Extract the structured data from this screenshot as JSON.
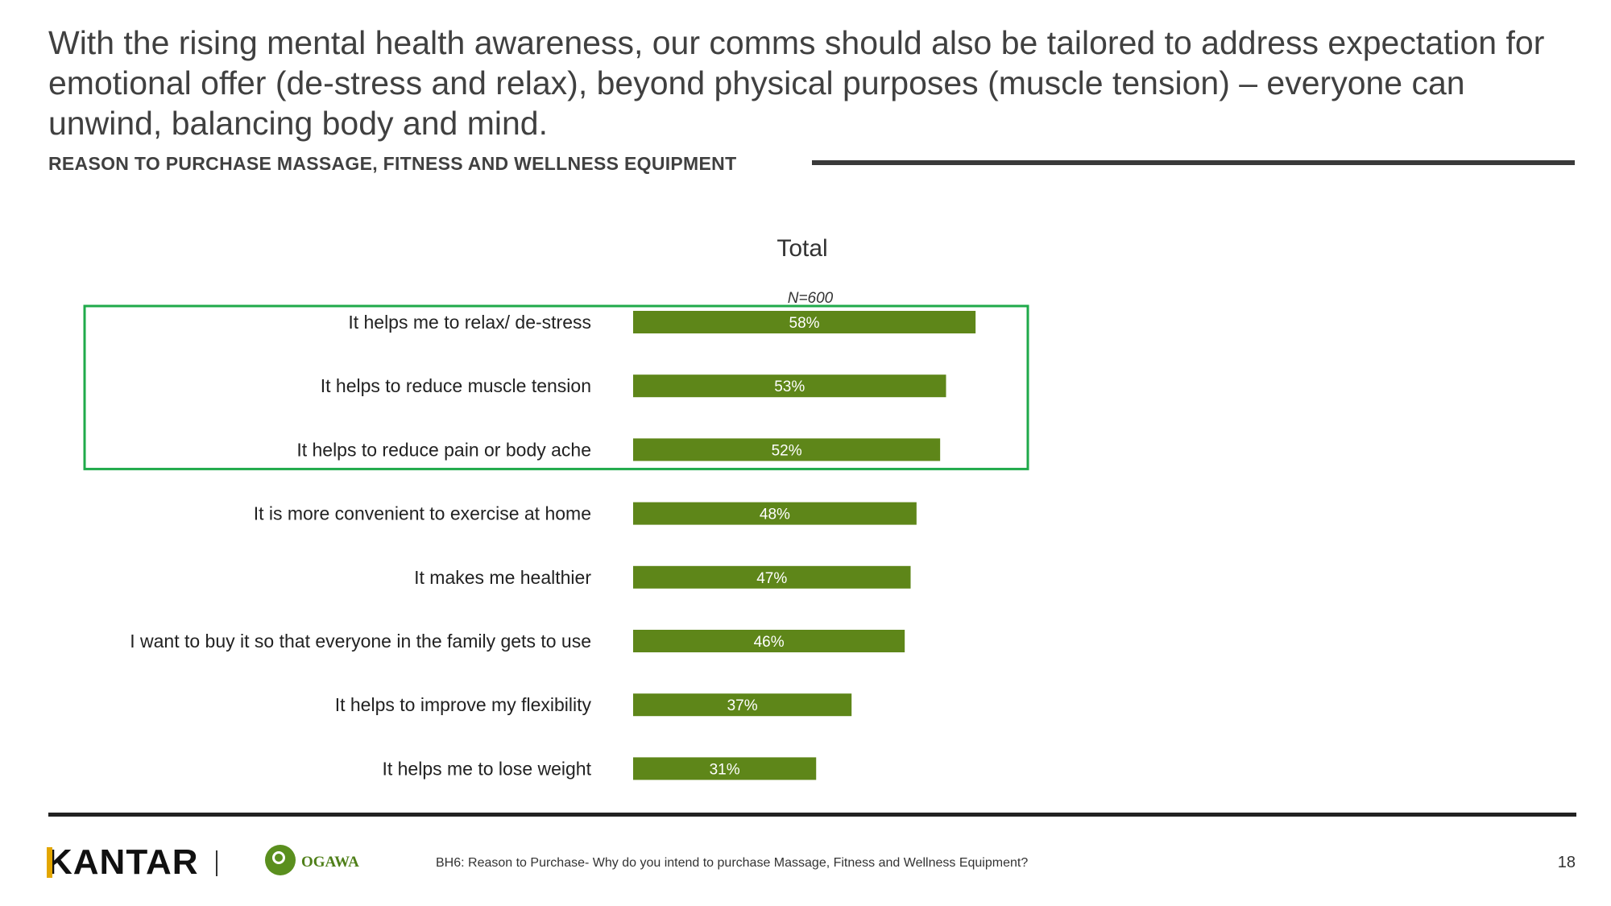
{
  "headline": "With the rising mental health awareness, our comms should also be tailored to address expectation for emotional offer (de-stress and relax), beyond physical purposes (muscle tension) – everyone can unwind, balancing body and mind.",
  "section_title": "REASON TO PURCHASE MASSAGE, FITNESS AND WELLNESS EQUIPMENT",
  "footer": {
    "kantar_logo": "KANTAR",
    "ogawa_logo": "OGAWA",
    "footnote": "BH6: Reason to Purchase- Why do you intend to purchase Massage, Fitness and Wellness Equipment?",
    "page_number": "18"
  },
  "colors": {
    "bar": "#5e8619",
    "highlight_box": "#1faa4a",
    "bar_label": "#ffffff"
  },
  "chart_data": {
    "type": "bar",
    "orientation": "horizontal",
    "title": "Total",
    "subtitle": "N=600",
    "categories": [
      "It helps me to relax/ de-stress",
      "It helps to reduce muscle tension",
      "It helps to reduce pain or body ache",
      "It is more convenient to exercise at home",
      "It makes me healthier",
      "I want to buy it so that everyone in the family gets to use",
      "It helps to improve my flexibility",
      "It helps me to lose weight"
    ],
    "values": [
      58,
      53,
      52,
      48,
      47,
      46,
      37,
      31
    ],
    "value_labels": [
      "58%",
      "53%",
      "52%",
      "48%",
      "47%",
      "46%",
      "37%",
      "31%"
    ],
    "unit": "%",
    "xlim": [
      0,
      100
    ],
    "highlighted_categories": [
      0,
      1,
      2
    ],
    "grid": false,
    "legend": "none"
  }
}
